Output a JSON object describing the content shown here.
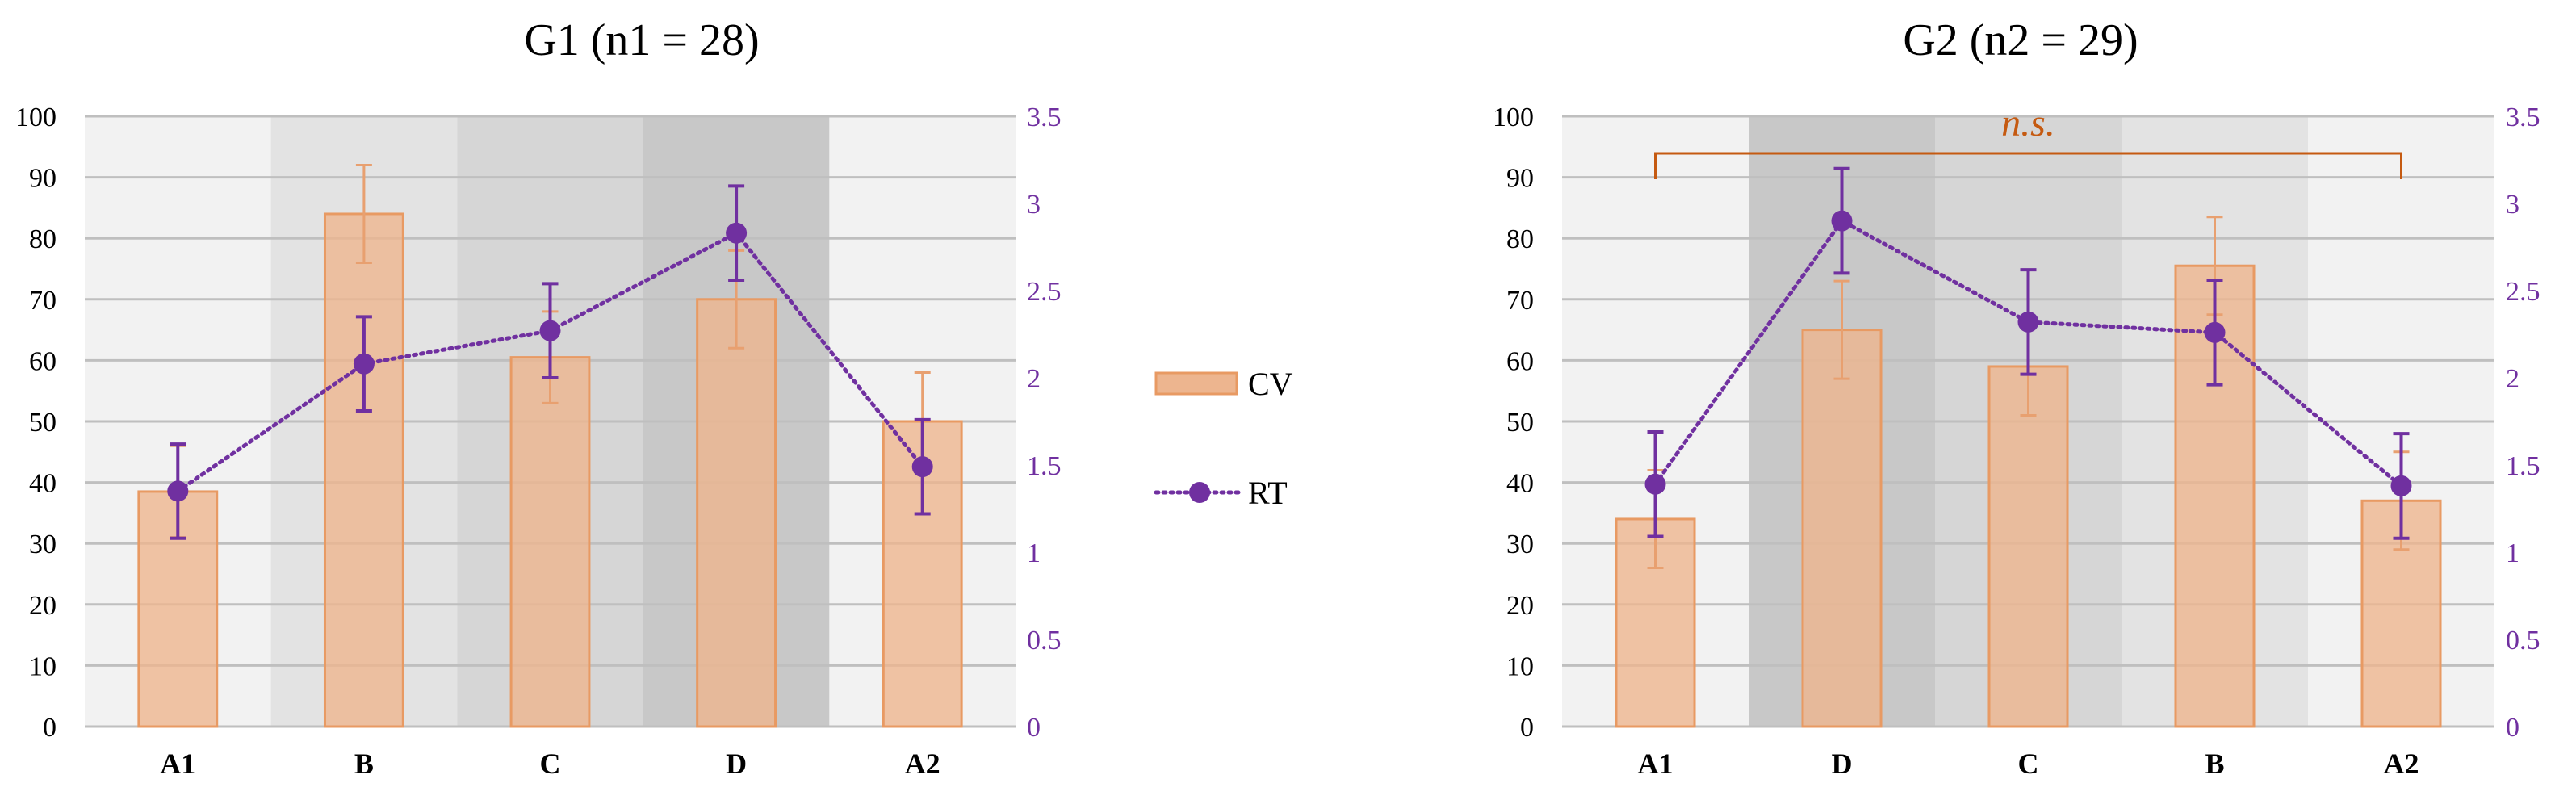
{
  "chart_data": [
    {
      "type": "bar",
      "title": "G1 (n1 = 28)",
      "categories": [
        "A1",
        "B",
        "C",
        "D",
        "A2"
      ],
      "category_shading": [
        "#f2f2f2",
        "#e3e3e3",
        "#d6d6d6",
        "#c8c8c8",
        "#f2f2f2"
      ],
      "series": [
        {
          "name": "CV",
          "kind": "bar",
          "axis": "left",
          "values": [
            38.5,
            84,
            60.5,
            70,
            50
          ],
          "errors": [
            7.5,
            8,
            7.5,
            8,
            8
          ]
        },
        {
          "name": "RT",
          "kind": "line",
          "axis": "right",
          "values": [
            1.35,
            2.08,
            2.27,
            2.83,
            1.49
          ],
          "errors": [
            0.27,
            0.27,
            0.27,
            0.27,
            0.27
          ]
        }
      ],
      "ylim": [
        0,
        100
      ],
      "yticks": [
        "0",
        "10",
        "20",
        "30",
        "40",
        "50",
        "60",
        "70",
        "80",
        "90",
        "100"
      ],
      "y2lim": [
        0,
        3.5
      ],
      "y2ticks": [
        "0",
        "0.5",
        "1",
        "1.5",
        "2",
        "2.5",
        "3",
        "3.5"
      ],
      "xlabel": "",
      "ylabel": "",
      "grid": true
    },
    {
      "type": "bar",
      "title": "G2 (n2 = 29)",
      "categories": [
        "A1",
        "D",
        "C",
        "B",
        "A2"
      ],
      "category_shading": [
        "#f2f2f2",
        "#c8c8c8",
        "#d6d6d6",
        "#e3e3e3",
        "#f2f2f2"
      ],
      "series": [
        {
          "name": "CV",
          "kind": "bar",
          "axis": "left",
          "values": [
            34,
            65,
            59,
            75.5,
            37
          ],
          "errors": [
            8,
            8,
            8,
            8,
            8
          ]
        },
        {
          "name": "RT",
          "kind": "line",
          "axis": "right",
          "values": [
            1.39,
            2.9,
            2.32,
            2.26,
            1.38
          ],
          "errors": [
            0.3,
            0.3,
            0.3,
            0.3,
            0.3
          ]
        }
      ],
      "ylim": [
        0,
        100
      ],
      "yticks": [
        "0",
        "10",
        "20",
        "30",
        "40",
        "50",
        "60",
        "70",
        "80",
        "90",
        "100"
      ],
      "y2lim": [
        0,
        3.5
      ],
      "y2ticks": [
        "0",
        "0.5",
        "1",
        "1.5",
        "2",
        "2.5",
        "3",
        "3.5"
      ],
      "annotation": {
        "text": "n.s.",
        "from_category": "A1",
        "to_category": "A2"
      },
      "xlabel": "",
      "ylabel": "",
      "grid": true
    }
  ],
  "legend": [
    {
      "name": "CV",
      "label": "CV",
      "kind": "bar"
    },
    {
      "name": "RT",
      "label": "RT",
      "kind": "line"
    }
  ],
  "colors": {
    "bar_fill": "#edb58f",
    "bar_stroke": "#e89a63",
    "bar_error": "#e8a070",
    "line": "#7030a0",
    "annotation": "#c55a11",
    "grid": "#bfbfbf"
  }
}
